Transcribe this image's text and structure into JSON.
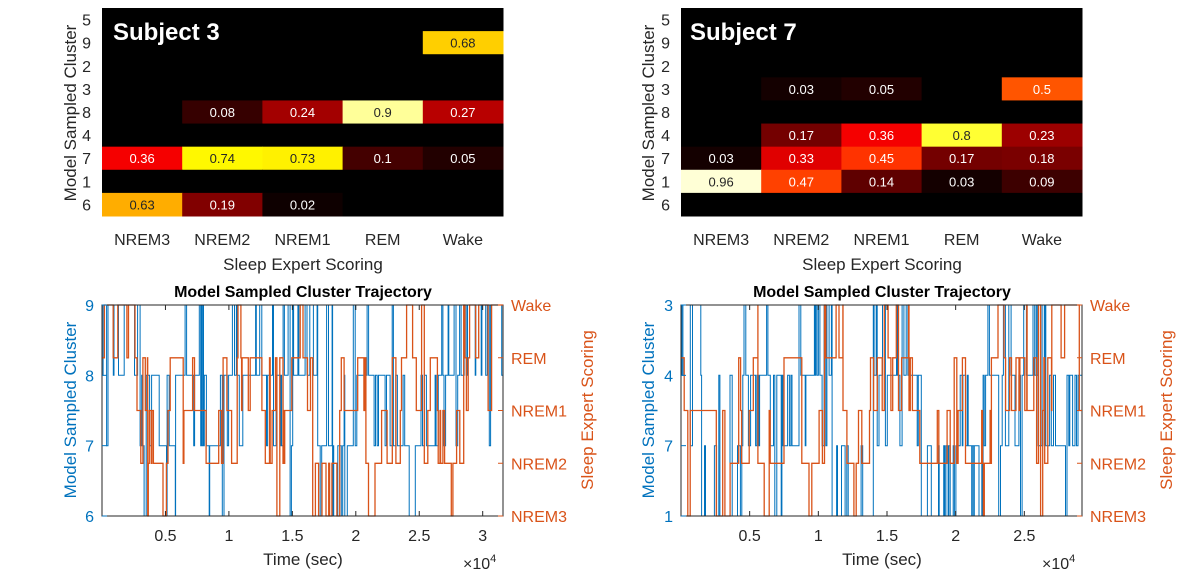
{
  "chart_data": [
    {
      "type": "heatmap",
      "panel_label": "Subject 3",
      "xlabel": "Sleep Expert Scoring",
      "ylabel": "Model Sampled Cluster",
      "x_categories": [
        "NREM3",
        "NREM2",
        "NREM1",
        "REM",
        "Wake"
      ],
      "y_categories": [
        "5",
        "9",
        "2",
        "3",
        "8",
        "4",
        "7",
        "1",
        "6"
      ],
      "values": [
        [
          0,
          0,
          0,
          0,
          0
        ],
        [
          0,
          0,
          0,
          0,
          0.68
        ],
        [
          0,
          0,
          0,
          0,
          0
        ],
        [
          0,
          0,
          0,
          0,
          0
        ],
        [
          0,
          0.08,
          0.24,
          0.9,
          0.27
        ],
        [
          0,
          0,
          0,
          0,
          0
        ],
        [
          0.36,
          0.74,
          0.73,
          0.1,
          0.05
        ],
        [
          0,
          0,
          0,
          0,
          0
        ],
        [
          0.63,
          0.19,
          0.02,
          0,
          0
        ]
      ],
      "cell_labels": [
        [
          "",
          "",
          "",
          "",
          ""
        ],
        [
          "",
          "",
          "",
          "",
          "0.68"
        ],
        [
          "",
          "",
          "",
          "",
          ""
        ],
        [
          "",
          "",
          "",
          "",
          ""
        ],
        [
          "",
          "0.08",
          "0.24",
          "0.9",
          "0.27"
        ],
        [
          "",
          "",
          "",
          "",
          ""
        ],
        [
          "0.36",
          "0.74",
          "0.73",
          "0.1",
          "0.05"
        ],
        [
          "",
          "",
          "",
          "",
          ""
        ],
        [
          "0.63",
          "0.19",
          "0.02",
          "",
          ""
        ]
      ],
      "colormap": "hot",
      "zlim": [
        0,
        1
      ]
    },
    {
      "type": "heatmap",
      "panel_label": "Subject 7",
      "xlabel": "Sleep Expert Scoring",
      "ylabel": "Model Sampled Cluster",
      "x_categories": [
        "NREM3",
        "NREM2",
        "NREM1",
        "REM",
        "Wake"
      ],
      "y_categories": [
        "5",
        "9",
        "2",
        "3",
        "8",
        "4",
        "7",
        "1",
        "6"
      ],
      "values": [
        [
          0,
          0,
          0,
          0,
          0
        ],
        [
          0,
          0,
          0,
          0,
          0
        ],
        [
          0,
          0,
          0,
          0,
          0
        ],
        [
          0,
          0.03,
          0.05,
          0,
          0.5
        ],
        [
          0,
          0,
          0,
          0,
          0
        ],
        [
          0,
          0.17,
          0.36,
          0.8,
          0.23
        ],
        [
          0.03,
          0.33,
          0.45,
          0.17,
          0.18
        ],
        [
          0.96,
          0.47,
          0.14,
          0.03,
          0.09
        ],
        [
          0,
          0,
          0,
          0,
          0
        ]
      ],
      "cell_labels": [
        [
          "",
          "",
          "",
          "",
          ""
        ],
        [
          "",
          "",
          "",
          "",
          ""
        ],
        [
          "",
          "",
          "",
          "",
          ""
        ],
        [
          "",
          "0.03",
          "0.05",
          "",
          "0.5"
        ],
        [
          "",
          "",
          "",
          "",
          ""
        ],
        [
          "",
          "0.17",
          "0.36",
          "0.8",
          "0.23"
        ],
        [
          "0.03",
          "0.33",
          "0.45",
          "0.17",
          "0.18"
        ],
        [
          "0.96",
          "0.47",
          "0.14",
          "0.03",
          "0.09"
        ],
        [
          "",
          "",
          "",
          "",
          ""
        ]
      ],
      "colormap": "hot",
      "zlim": [
        0,
        1
      ]
    },
    {
      "type": "line",
      "title": "Model Sampled Cluster Trajectory",
      "xlabel": "Time (sec)",
      "x_exponent": "×10",
      "x_exponent_power": "4",
      "xlim": [
        0,
        31600
      ],
      "x_ticks": [
        5000,
        10000,
        15000,
        20000,
        25000,
        30000
      ],
      "x_tick_labels": [
        "0.5",
        "1",
        "1.5",
        "2",
        "2.5",
        "3"
      ],
      "ylabel_left": "Model Sampled Cluster",
      "left_ticks": [
        "6",
        "7",
        "8",
        "9"
      ],
      "ylabel_right": "Sleep Expert Scoring",
      "right_ticks": [
        "NREM3",
        "NREM2",
        "NREM1",
        "REM",
        "Wake"
      ],
      "series": [
        {
          "name": "Model Sampled Cluster",
          "axis": "left",
          "color": "#0072bd",
          "seed": 11,
          "segments": [
            [
              0,
              3000,
              "9"
            ],
            [
              3000,
              4200,
              "8"
            ],
            [
              4200,
              5800,
              "7"
            ],
            [
              5800,
              8000,
              "8"
            ],
            [
              8000,
              9200,
              "7"
            ],
            [
              9200,
              12000,
              "8"
            ],
            [
              12000,
              17000,
              "8"
            ],
            [
              17000,
              19800,
              "7"
            ],
            [
              19800,
              23000,
              "8"
            ],
            [
              23000,
              26500,
              "7"
            ],
            [
              26500,
              28800,
              "8"
            ],
            [
              28800,
              31600,
              "9"
            ]
          ]
        },
        {
          "name": "Sleep Expert Scoring",
          "axis": "right",
          "color": "#d95319",
          "seed": 23,
          "segments": [
            [
              0,
              2600,
              "Wake"
            ],
            [
              2600,
              3600,
              "NREM1"
            ],
            [
              3600,
              5200,
              "NREM2"
            ],
            [
              5200,
              6400,
              "REM"
            ],
            [
              6400,
              8200,
              "NREM1"
            ],
            [
              8200,
              9200,
              "NREM2"
            ],
            [
              9200,
              11000,
              "NREM1"
            ],
            [
              11000,
              12600,
              "REM"
            ],
            [
              12600,
              14400,
              "NREM1"
            ],
            [
              14400,
              16600,
              "REM"
            ],
            [
              16600,
              18800,
              "NREM2"
            ],
            [
              18800,
              20800,
              "NREM1"
            ],
            [
              20800,
              23600,
              "NREM2"
            ],
            [
              23600,
              25400,
              "REM"
            ],
            [
              25400,
              27000,
              "NREM1"
            ],
            [
              27000,
              28500,
              "NREM2"
            ],
            [
              28500,
              31600,
              "Wake"
            ]
          ]
        }
      ]
    },
    {
      "type": "line",
      "title": "Model Sampled Cluster Trajectory",
      "xlabel": "Time (sec)",
      "x_exponent": "×10",
      "x_exponent_power": "4",
      "xlim": [
        0,
        29200
      ],
      "x_ticks": [
        5000,
        10000,
        15000,
        20000,
        25000
      ],
      "x_tick_labels": [
        "0.5",
        "1",
        "1.5",
        "2",
        "2.5"
      ],
      "ylabel_left": "Model Sampled Cluster",
      "left_ticks": [
        "1",
        "7",
        "4",
        "3"
      ],
      "ylabel_right": "Sleep Expert Scoring",
      "right_ticks": [
        "NREM3",
        "NREM2",
        "NREM1",
        "REM",
        "Wake"
      ],
      "series": [
        {
          "name": "Model Sampled Cluster",
          "axis": "left",
          "color": "#0072bd",
          "seed": 37,
          "segments": [
            [
              0,
              1500,
              "3"
            ],
            [
              1500,
              4500,
              "1"
            ],
            [
              4500,
              6500,
              "4"
            ],
            [
              6500,
              8500,
              "7"
            ],
            [
              8500,
              11000,
              "4"
            ],
            [
              11000,
              14000,
              "1"
            ],
            [
              14000,
              17500,
              "4"
            ],
            [
              17500,
              19500,
              "1"
            ],
            [
              19500,
              22000,
              "7"
            ],
            [
              22000,
              26000,
              "4"
            ],
            [
              26000,
              29200,
              "7"
            ]
          ]
        },
        {
          "name": "Sleep Expert Scoring",
          "axis": "right",
          "color": "#d95319",
          "seed": 51,
          "segments": [
            [
              0,
              2400,
              "NREM1"
            ],
            [
              2400,
              4200,
              "NREM2"
            ],
            [
              4200,
              5600,
              "REM"
            ],
            [
              5600,
              7500,
              "NREM2"
            ],
            [
              7500,
              8800,
              "REM"
            ],
            [
              8800,
              10300,
              "NREM2"
            ],
            [
              10300,
              11800,
              "REM"
            ],
            [
              11800,
              13800,
              "NREM2"
            ],
            [
              13800,
              16600,
              "REM"
            ],
            [
              16600,
              17800,
              "NREM1"
            ],
            [
              17800,
              19200,
              "NREM2"
            ],
            [
              19200,
              20400,
              "NREM1"
            ],
            [
              20400,
              22600,
              "NREM2"
            ],
            [
              22600,
              25200,
              "REM"
            ],
            [
              25200,
              27000,
              "NREM1"
            ],
            [
              27000,
              29200,
              "Wake"
            ]
          ]
        }
      ]
    }
  ]
}
